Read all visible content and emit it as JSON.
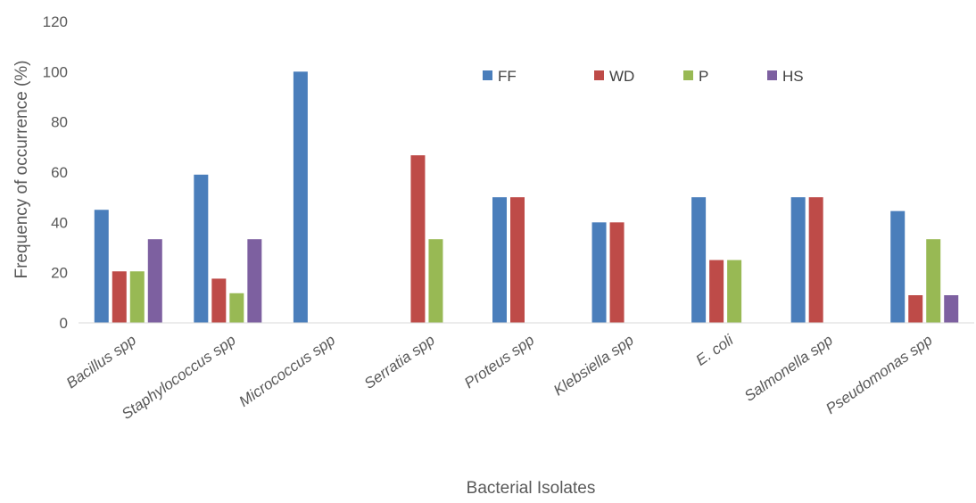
{
  "chart_data": {
    "type": "bar",
    "title": "",
    "xlabel": "Bacterial Isolates",
    "ylabel": "Frequency of occurrence (%)",
    "ylim": [
      0,
      120
    ],
    "yticks": [
      0,
      20,
      40,
      60,
      80,
      100,
      120
    ],
    "grid": false,
    "legend_position": "top-center",
    "categories": [
      "Bacillus spp",
      "Staphylococcus spp",
      "Micrococcus spp",
      "Serratia spp",
      "Proteus spp",
      "Klebsiella spp",
      "E. coli",
      "Salmonella spp",
      "Pseudomonas spp"
    ],
    "series": [
      {
        "name": "FF",
        "color": "#4a7ebb",
        "values": [
          45,
          59,
          100,
          0,
          50,
          40,
          50,
          50,
          44.5
        ]
      },
      {
        "name": "WD",
        "color": "#be4b48",
        "values": [
          20.5,
          17.6,
          0,
          66.7,
          50,
          40,
          25,
          50,
          11
        ]
      },
      {
        "name": "P",
        "color": "#98b954",
        "values": [
          20.5,
          11.8,
          0,
          33.3,
          0,
          0,
          25,
          0,
          33.3
        ]
      },
      {
        "name": "HS",
        "color": "#7d60a0",
        "values": [
          33.3,
          33.3,
          0,
          0,
          0,
          0,
          0,
          0,
          11
        ]
      }
    ]
  }
}
